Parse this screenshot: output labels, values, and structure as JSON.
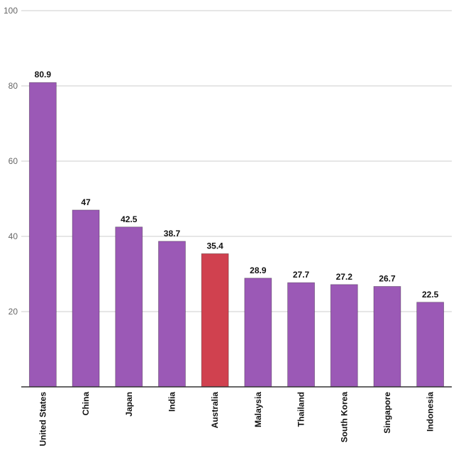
{
  "chart_data": {
    "type": "bar",
    "title": "",
    "xlabel": "",
    "ylabel": "",
    "ylim": [
      0,
      100
    ],
    "yticks": [
      20,
      40,
      60,
      80,
      100
    ],
    "grid": true,
    "categories": [
      "United States",
      "China",
      "Japan",
      "India",
      "Australia",
      "Malaysia",
      "Thailand",
      "South Korea",
      "Singapore",
      "Indonesia"
    ],
    "values": [
      80.9,
      47,
      42.5,
      38.7,
      35.4,
      28.9,
      27.7,
      27.2,
      26.7,
      22.5
    ],
    "value_labels": [
      "80.9",
      "47",
      "42.5",
      "38.7",
      "35.4",
      "28.9",
      "27.7",
      "27.2",
      "26.7",
      "22.5"
    ],
    "highlight": "Australia",
    "colors": {
      "bar": "#9b59b6",
      "highlight": "#d0414f",
      "grid": "#cccccc",
      "axis": "#333333"
    }
  }
}
